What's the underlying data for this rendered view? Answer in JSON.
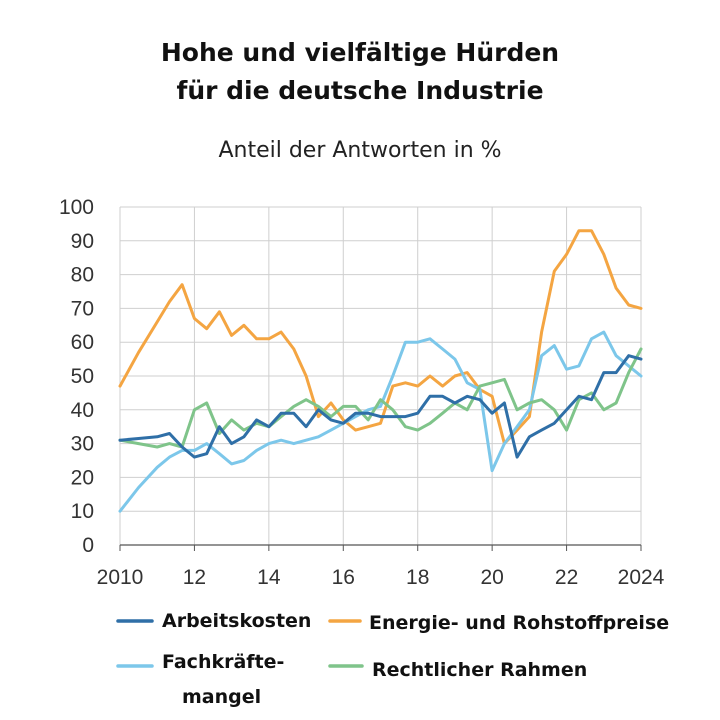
{
  "chart_data": {
    "type": "line",
    "title_line1": "Hohe und vielfältige Hürden",
    "title_line2": "für die deutsche Industrie",
    "subtitle": "Anteil der Antworten in %",
    "ylim": [
      0,
      100
    ],
    "xlim": [
      2010,
      2024
    ],
    "y_ticks": [
      "0",
      "10",
      "20",
      "30",
      "40",
      "50",
      "60",
      "70",
      "80",
      "90",
      "100"
    ],
    "x_ticks": [
      "2010",
      "12",
      "14",
      "16",
      "18",
      "20",
      "22",
      "2024"
    ],
    "x_tick_values": [
      2010,
      2012,
      2014,
      2016,
      2018,
      2020,
      2022,
      2024
    ],
    "grid": true,
    "legend_position": "bottom",
    "series": [
      {
        "name": "Arbeitskosten",
        "color": "#2f6fa7",
        "x": [
          2010,
          2010.5,
          2011,
          2011.33,
          2011.67,
          2012,
          2012.33,
          2012.67,
          2013,
          2013.33,
          2013.67,
          2014,
          2014.33,
          2014.67,
          2015,
          2015.33,
          2015.67,
          2016,
          2016.33,
          2016.67,
          2017,
          2017.33,
          2017.67,
          2018,
          2018.33,
          2018.67,
          2019,
          2019.33,
          2019.67,
          2020,
          2020.33,
          2020.67,
          2021,
          2021.33,
          2021.67,
          2022,
          2022.33,
          2022.67,
          2023,
          2023.33,
          2023.67,
          2024
        ],
        "y": [
          31,
          31.5,
          32,
          33,
          29,
          26,
          27,
          35,
          30,
          32,
          37,
          35,
          39,
          39,
          35,
          40,
          37,
          36,
          39,
          39,
          38,
          38,
          38,
          39,
          44,
          44,
          42,
          44,
          43,
          39,
          42,
          26,
          32,
          34,
          36,
          40,
          44,
          43,
          51,
          51,
          56,
          55
        ]
      },
      {
        "name": "Energie- und Rohstoffpreise",
        "color": "#f4a542",
        "x": [
          2010,
          2010.5,
          2011,
          2011.33,
          2011.67,
          2012,
          2012.33,
          2012.67,
          2013,
          2013.33,
          2013.67,
          2014,
          2014.33,
          2014.67,
          2015,
          2015.33,
          2015.67,
          2016,
          2016.33,
          2016.67,
          2017,
          2017.33,
          2017.67,
          2018,
          2018.33,
          2018.67,
          2019,
          2019.33,
          2019.67,
          2020,
          2020.33,
          2020.67,
          2021,
          2021.33,
          2021.67,
          2022,
          2022.33,
          2022.67,
          2023,
          2023.33,
          2023.67,
          2024
        ],
        "y": [
          47,
          57,
          66,
          72,
          77,
          67,
          64,
          69,
          62,
          65,
          61,
          61,
          63,
          58,
          50,
          38,
          42,
          37,
          34,
          35,
          36,
          47,
          48,
          47,
          50,
          47,
          50,
          51,
          46,
          44,
          30,
          34,
          38,
          63,
          81,
          86,
          93,
          93,
          86,
          76,
          71,
          70
        ]
      },
      {
        "name": "Fachkräfte-mangel",
        "label_line1": "Fachkräfte-",
        "label_line2": "mangel",
        "color": "#7cc7ea",
        "x": [
          2010,
          2010.5,
          2011,
          2011.33,
          2011.67,
          2012,
          2012.33,
          2012.67,
          2013,
          2013.33,
          2013.67,
          2014,
          2014.33,
          2014.67,
          2015,
          2015.33,
          2015.67,
          2016,
          2016.33,
          2016.67,
          2017,
          2017.33,
          2017.67,
          2018,
          2018.33,
          2018.67,
          2019,
          2019.33,
          2019.67,
          2020,
          2020.33,
          2020.67,
          2021,
          2021.33,
          2021.67,
          2022,
          2022.33,
          2022.67,
          2023,
          2023.33,
          2023.67,
          2024
        ],
        "y": [
          10,
          17,
          23,
          26,
          28,
          28,
          30,
          27,
          24,
          25,
          28,
          30,
          31,
          30,
          31,
          32,
          34,
          36,
          38,
          40,
          41,
          50,
          60,
          60,
          61,
          58,
          55,
          48,
          46,
          22,
          30,
          35,
          40,
          56,
          59,
          52,
          53,
          61,
          63,
          56,
          53,
          50
        ]
      },
      {
        "name": "Rechtlicher Rahmen",
        "color": "#7fc48a",
        "x": [
          2010,
          2010.5,
          2011,
          2011.33,
          2011.67,
          2012,
          2012.33,
          2012.67,
          2013,
          2013.33,
          2013.67,
          2014,
          2014.33,
          2014.67,
          2015,
          2015.33,
          2015.67,
          2016,
          2016.33,
          2016.67,
          2017,
          2017.33,
          2017.67,
          2018,
          2018.33,
          2018.67,
          2019,
          2019.33,
          2019.67,
          2020,
          2020.33,
          2020.67,
          2021,
          2021.33,
          2021.67,
          2022,
          2022.33,
          2022.67,
          2023,
          2023.33,
          2023.67,
          2024
        ],
        "y": [
          31,
          30,
          29,
          30,
          29,
          40,
          42,
          33,
          37,
          34,
          36,
          35,
          38,
          41,
          43,
          41,
          38,
          41,
          41,
          37,
          43,
          40,
          35,
          34,
          36,
          39,
          42,
          40,
          47,
          48,
          49,
          40,
          42,
          43,
          40,
          34,
          43,
          45,
          40,
          42,
          51,
          58
        ]
      }
    ]
  }
}
